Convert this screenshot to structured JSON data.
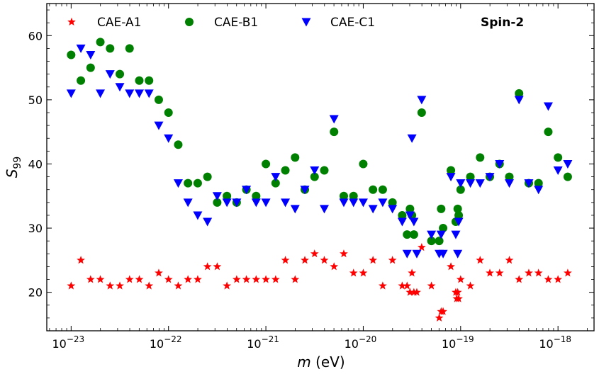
{
  "chart_data": {
    "type": "scatter",
    "title": "",
    "xlabel_symbol": "m",
    "xlabel_unit": " (eV)",
    "ylabel_symbol": "S",
    "ylabel_sub": "99",
    "xscale": "log",
    "xlim_log10": [
      -23.25,
      -17.63
    ],
    "ylim": [
      14,
      65
    ],
    "x_ticks": [
      {
        "exp": -23,
        "base": "10",
        "sup": "−23"
      },
      {
        "exp": -22,
        "base": "10",
        "sup": "−22"
      },
      {
        "exp": -21,
        "base": "10",
        "sup": "−21"
      },
      {
        "exp": -20,
        "base": "10",
        "sup": "−20"
      },
      {
        "exp": -19,
        "base": "10",
        "sup": "−19"
      },
      {
        "exp": -18,
        "base": "10",
        "sup": "−18"
      }
    ],
    "y_ticks": [
      20,
      30,
      40,
      50,
      60
    ],
    "y_minor_step": 2,
    "legend_position": "top",
    "annotation": "Spin-2",
    "series": [
      {
        "name": "CAE-A1",
        "marker": "star",
        "color": "#ff0000",
        "points": [
          [
            -23.0,
            21
          ],
          [
            -22.9,
            25
          ],
          [
            -22.8,
            22
          ],
          [
            -22.7,
            22
          ],
          [
            -22.6,
            21
          ],
          [
            -22.5,
            21
          ],
          [
            -22.4,
            22
          ],
          [
            -22.3,
            22
          ],
          [
            -22.2,
            21
          ],
          [
            -22.1,
            23
          ],
          [
            -22.0,
            22
          ],
          [
            -21.9,
            21
          ],
          [
            -21.8,
            22
          ],
          [
            -21.7,
            22
          ],
          [
            -21.6,
            24
          ],
          [
            -21.5,
            24
          ],
          [
            -21.4,
            21
          ],
          [
            -21.3,
            22
          ],
          [
            -21.2,
            22
          ],
          [
            -21.1,
            22
          ],
          [
            -21.0,
            22
          ],
          [
            -20.9,
            22
          ],
          [
            -20.8,
            25
          ],
          [
            -20.7,
            22
          ],
          [
            -20.6,
            25
          ],
          [
            -20.5,
            26
          ],
          [
            -20.4,
            25
          ],
          [
            -20.3,
            24
          ],
          [
            -20.2,
            26
          ],
          [
            -20.1,
            23
          ],
          [
            -20.0,
            23
          ],
          [
            -19.9,
            25
          ],
          [
            -19.8,
            21
          ],
          [
            -19.7,
            25
          ],
          [
            -19.6,
            21
          ],
          [
            -19.55,
            21
          ],
          [
            -19.52,
            20
          ],
          [
            -19.5,
            23
          ],
          [
            -19.48,
            20
          ],
          [
            -19.45,
            20
          ],
          [
            -19.4,
            27
          ],
          [
            -19.3,
            21
          ],
          [
            -19.22,
            16
          ],
          [
            -19.2,
            17
          ],
          [
            -19.18,
            17
          ],
          [
            -19.1,
            24
          ],
          [
            -19.05,
            20
          ],
          [
            -19.04,
            19
          ],
          [
            -19.03,
            20
          ],
          [
            -19.02,
            19
          ],
          [
            -19.0,
            22
          ],
          [
            -18.9,
            21
          ],
          [
            -18.8,
            25
          ],
          [
            -18.7,
            23
          ],
          [
            -18.6,
            23
          ],
          [
            -18.5,
            25
          ],
          [
            -18.4,
            22
          ],
          [
            -18.3,
            23
          ],
          [
            -18.2,
            23
          ],
          [
            -18.1,
            22
          ],
          [
            -18.0,
            22
          ],
          [
            -17.9,
            23
          ]
        ]
      },
      {
        "name": "CAE-B1",
        "marker": "circle",
        "color": "#008000",
        "points": [
          [
            -23.0,
            57
          ],
          [
            -22.9,
            53
          ],
          [
            -22.8,
            55
          ],
          [
            -22.7,
            59
          ],
          [
            -22.6,
            58
          ],
          [
            -22.5,
            54
          ],
          [
            -22.4,
            58
          ],
          [
            -22.3,
            53
          ],
          [
            -22.2,
            53
          ],
          [
            -22.1,
            50
          ],
          [
            -22.0,
            48
          ],
          [
            -21.9,
            43
          ],
          [
            -21.8,
            37
          ],
          [
            -21.7,
            37
          ],
          [
            -21.6,
            38
          ],
          [
            -21.5,
            34
          ],
          [
            -21.4,
            35
          ],
          [
            -21.3,
            34
          ],
          [
            -21.2,
            36
          ],
          [
            -21.1,
            35
          ],
          [
            -21.0,
            40
          ],
          [
            -20.9,
            37
          ],
          [
            -20.8,
            39
          ],
          [
            -20.7,
            41
          ],
          [
            -20.6,
            36
          ],
          [
            -20.5,
            38
          ],
          [
            -20.4,
            39
          ],
          [
            -20.3,
            45
          ],
          [
            -20.2,
            35
          ],
          [
            -20.1,
            35
          ],
          [
            -20.0,
            40
          ],
          [
            -19.9,
            36
          ],
          [
            -19.8,
            36
          ],
          [
            -19.7,
            34
          ],
          [
            -19.6,
            32
          ],
          [
            -19.55,
            29
          ],
          [
            -19.52,
            33
          ],
          [
            -19.5,
            32
          ],
          [
            -19.48,
            29
          ],
          [
            -19.4,
            48
          ],
          [
            -19.3,
            28
          ],
          [
            -19.22,
            28
          ],
          [
            -19.2,
            33
          ],
          [
            -19.18,
            30
          ],
          [
            -19.1,
            39
          ],
          [
            -19.05,
            31
          ],
          [
            -19.03,
            33
          ],
          [
            -19.02,
            32
          ],
          [
            -19.0,
            36
          ],
          [
            -18.9,
            38
          ],
          [
            -18.8,
            41
          ],
          [
            -18.7,
            38
          ],
          [
            -18.6,
            40
          ],
          [
            -18.5,
            38
          ],
          [
            -18.4,
            51
          ],
          [
            -18.3,
            37
          ],
          [
            -18.2,
            37
          ],
          [
            -18.1,
            45
          ],
          [
            -18.0,
            41
          ],
          [
            -17.9,
            38
          ]
        ]
      },
      {
        "name": "CAE-C1",
        "marker": "triangle-down",
        "color": "#0000ff",
        "points": [
          [
            -23.0,
            51
          ],
          [
            -22.9,
            58
          ],
          [
            -22.8,
            57
          ],
          [
            -22.7,
            51
          ],
          [
            -22.6,
            54
          ],
          [
            -22.5,
            52
          ],
          [
            -22.4,
            51
          ],
          [
            -22.3,
            51
          ],
          [
            -22.2,
            51
          ],
          [
            -22.1,
            46
          ],
          [
            -22.0,
            44
          ],
          [
            -21.9,
            37
          ],
          [
            -21.8,
            34
          ],
          [
            -21.7,
            32
          ],
          [
            -21.6,
            31
          ],
          [
            -21.5,
            35
          ],
          [
            -21.4,
            34
          ],
          [
            -21.3,
            34
          ],
          [
            -21.2,
            36
          ],
          [
            -21.1,
            34
          ],
          [
            -21.0,
            34
          ],
          [
            -20.9,
            38
          ],
          [
            -20.8,
            34
          ],
          [
            -20.7,
            33
          ],
          [
            -20.6,
            36
          ],
          [
            -20.5,
            39
          ],
          [
            -20.4,
            33
          ],
          [
            -20.3,
            47
          ],
          [
            -20.2,
            34
          ],
          [
            -20.1,
            34
          ],
          [
            -20.0,
            34
          ],
          [
            -19.9,
            33
          ],
          [
            -19.8,
            34
          ],
          [
            -19.7,
            33
          ],
          [
            -19.6,
            31
          ],
          [
            -19.55,
            26
          ],
          [
            -19.52,
            32
          ],
          [
            -19.5,
            44
          ],
          [
            -19.48,
            31
          ],
          [
            -19.45,
            26
          ],
          [
            -19.4,
            50
          ],
          [
            -19.3,
            29
          ],
          [
            -19.22,
            26
          ],
          [
            -19.2,
            29
          ],
          [
            -19.18,
            26
          ],
          [
            -19.1,
            38
          ],
          [
            -19.05,
            29
          ],
          [
            -19.03,
            26
          ],
          [
            -19.02,
            31
          ],
          [
            -19.0,
            37
          ],
          [
            -18.9,
            37
          ],
          [
            -18.8,
            37
          ],
          [
            -18.7,
            38
          ],
          [
            -18.6,
            40
          ],
          [
            -18.5,
            37
          ],
          [
            -18.4,
            50
          ],
          [
            -18.3,
            37
          ],
          [
            -18.2,
            36
          ],
          [
            -18.1,
            49
          ],
          [
            -18.0,
            39
          ],
          [
            -17.9,
            40
          ]
        ]
      }
    ]
  }
}
